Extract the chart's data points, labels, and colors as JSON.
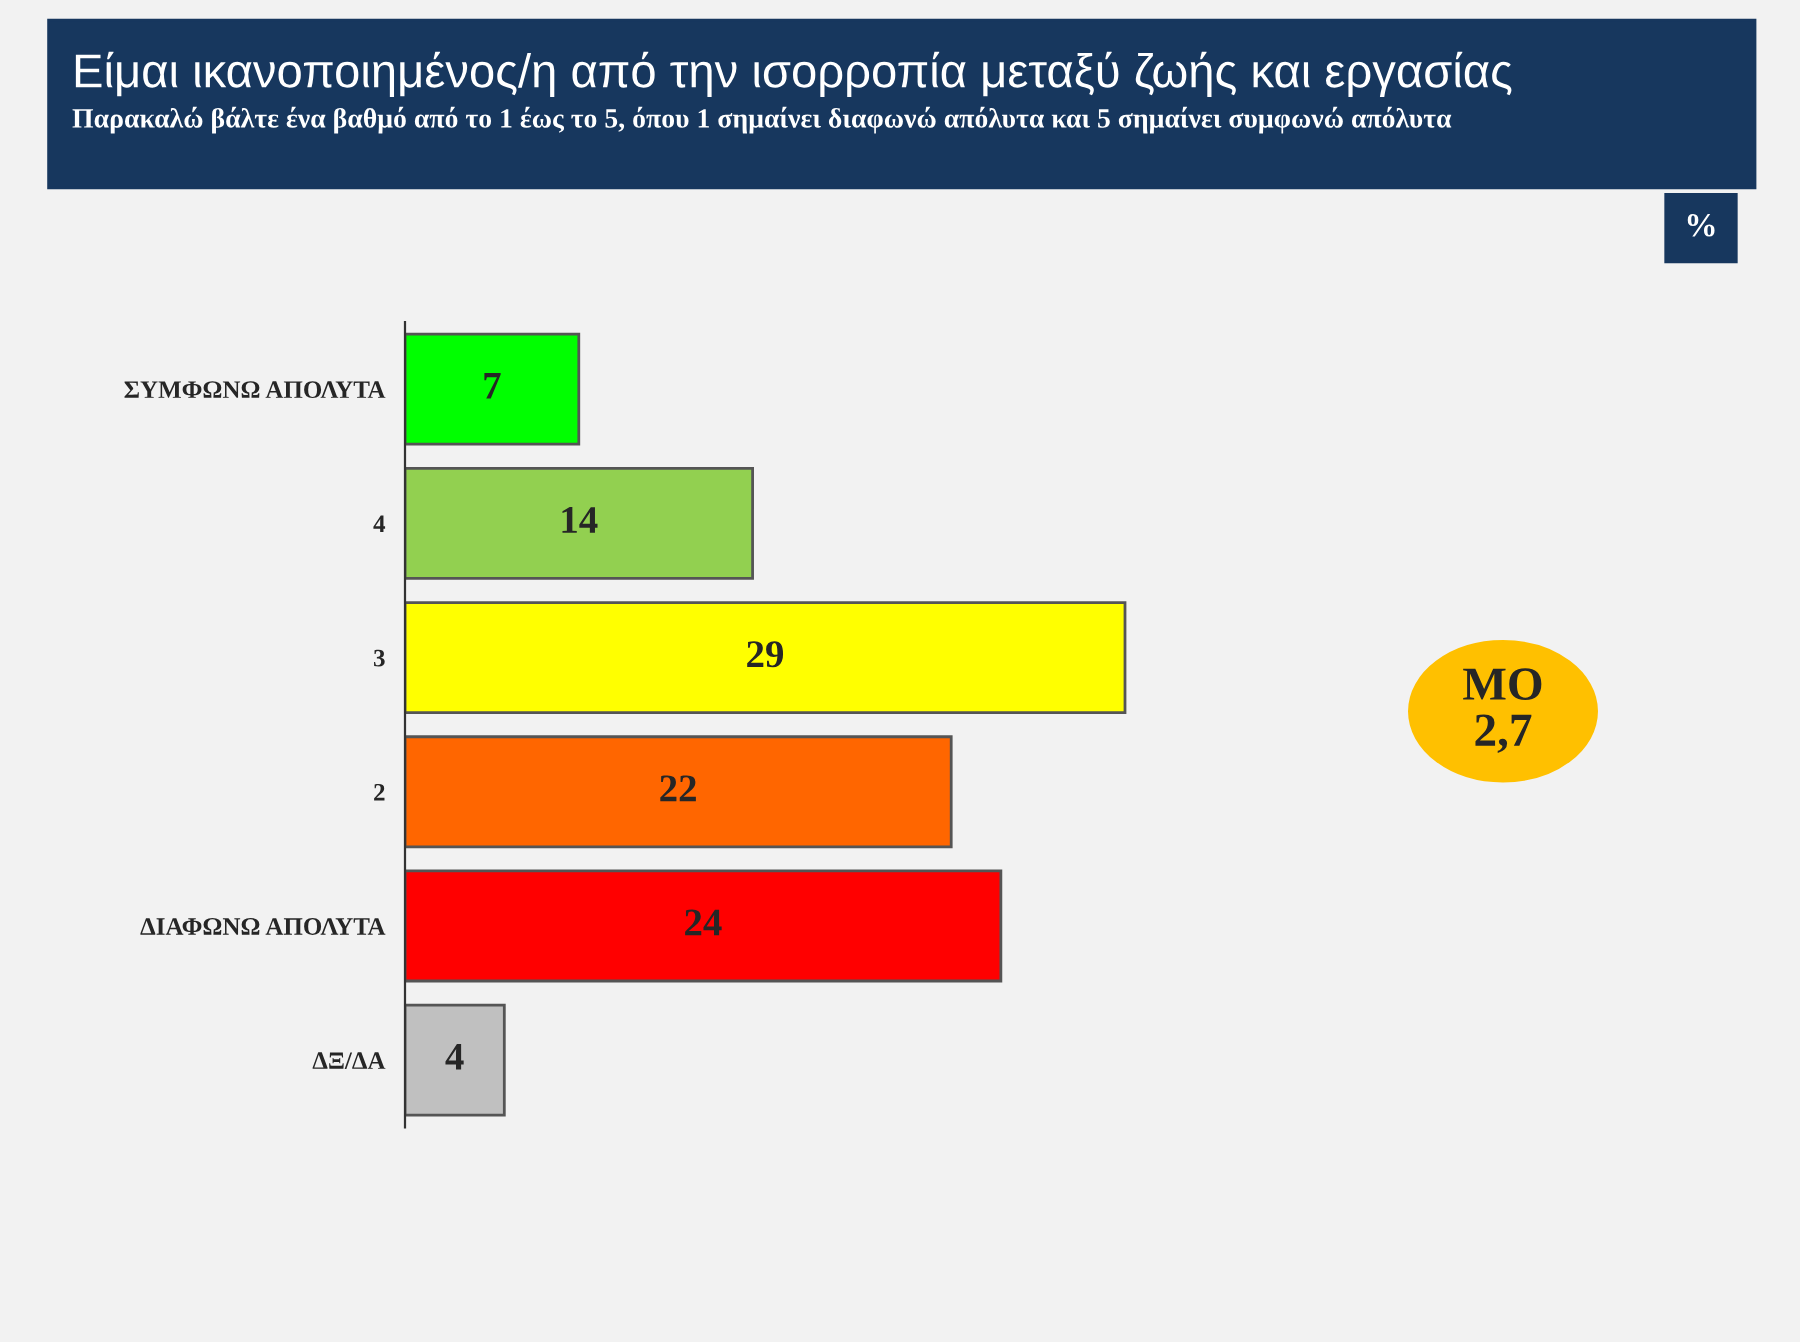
{
  "chart_data": {
    "type": "bar",
    "orientation": "horizontal",
    "title": "Είμαι ικανοποιημένος/η από την ισορροπία μεταξύ ζωής και εργασίας",
    "subtitle": "Παρακαλώ βάλτε ένα βαθμό από το 1 έως το 5, όπου 1 σημαίνει διαφωνώ απόλυτα και 5 σημαίνει συμφωνώ απόλυτα",
    "categories": [
      "ΣΥΜΦΩΝΩ ΑΠΟΛΥΤΑ",
      "4",
      "3",
      "2",
      "ΔΙΑΦΩΝΩ ΑΠΟΛΥΤΑ",
      "ΔΞ/ΔΑ"
    ],
    "values": [
      7,
      14,
      29,
      22,
      24,
      4
    ],
    "colors": [
      "#00ff00",
      "#92d050",
      "#ffff00",
      "#ff6600",
      "#ff0000",
      "#c0c0c0"
    ],
    "data_labels": true,
    "tick_labels": "y",
    "grid": false,
    "legend": false,
    "annotations": [
      "%",
      "ΜΟ\n2,7"
    ]
  }
}
